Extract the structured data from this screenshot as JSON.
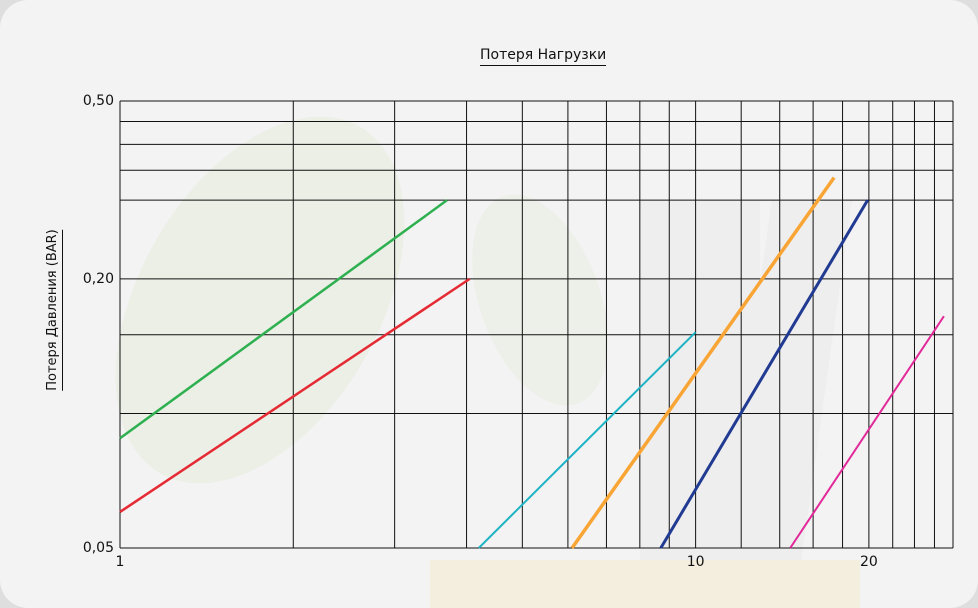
{
  "chart_data": {
    "type": "line",
    "title": "Потеря Нагрузки",
    "xlabel": "",
    "ylabel": "Потеря Давления (BAR)",
    "x_scale": "log",
    "y_scale": "log",
    "xlim": [
      1,
      28
    ],
    "ylim": [
      0.05,
      0.5
    ],
    "x_tick_labels": [
      "1",
      "10",
      "20"
    ],
    "x_ticks": [
      1,
      10,
      20
    ],
    "y_tick_labels": [
      "0,50",
      "0,20",
      "0,05"
    ],
    "y_ticks": [
      0.5,
      0.2,
      0.05
    ],
    "x_gridlines": [
      1,
      2,
      3,
      4,
      5,
      6,
      7,
      8,
      9,
      10,
      12,
      14,
      16,
      18,
      20,
      22,
      24,
      26,
      28
    ],
    "y_gridlines": [
      0.05,
      0.1,
      0.15,
      0.2,
      0.3,
      0.35,
      0.4,
      0.45,
      0.5
    ],
    "grid": true,
    "series": [
      {
        "color": "#2eb050",
        "width": 2.5,
        "x": [
          1,
          3.7
        ],
        "y": [
          0.088,
          0.3
        ]
      },
      {
        "color": "#e62a33",
        "width": 2.5,
        "x": [
          1,
          4.05
        ],
        "y": [
          0.0602,
          0.2
        ]
      },
      {
        "color": "#1fb3c4",
        "width": 2,
        "x": [
          4.2,
          10
        ],
        "y": [
          0.05,
          0.152
        ]
      },
      {
        "color": "#f8a535",
        "width": 3.5,
        "x": [
          6.1,
          17.4
        ],
        "y": [
          0.05,
          0.337
        ]
      },
      {
        "color": "#213a92",
        "width": 3,
        "x": [
          8.7,
          19.9
        ],
        "y": [
          0.05,
          0.3
        ]
      },
      {
        "color": "#e2299a",
        "width": 2,
        "x": [
          14.6,
          27
        ],
        "y": [
          0.05,
          0.165
        ]
      }
    ]
  }
}
